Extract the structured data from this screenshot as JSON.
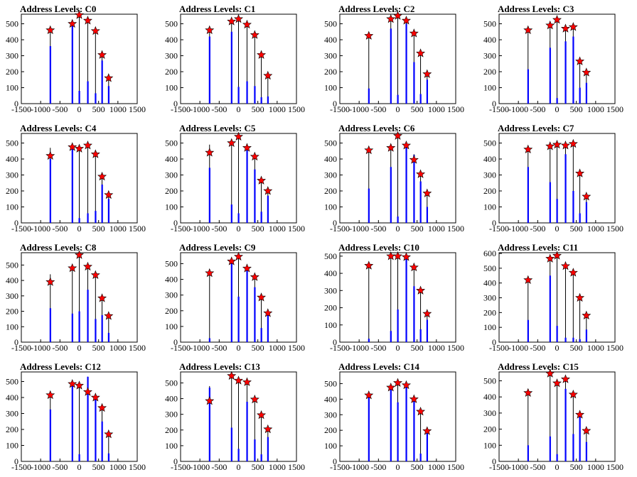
{
  "figure": {
    "background": "#ffffff",
    "bar_color": "#0000ff",
    "outline_color": "#000000",
    "star_fill": "#ff0000",
    "star_stroke": "#000000"
  },
  "chart_data": [
    {
      "type": "bar",
      "title": "Address Levels: C0",
      "xlim": [
        -1500,
        1500
      ],
      "xticks": [
        -1500,
        -1000,
        -500,
        0,
        500,
        1000,
        1500
      ],
      "ylim": [
        0,
        560
      ],
      "yticks": [
        0,
        100,
        200,
        300,
        400,
        500
      ],
      "x": [
        -750,
        -180,
        0,
        220,
        420,
        590,
        760
      ],
      "peaks": [
        460,
        500,
        560,
        520,
        455,
        305,
        160
      ],
      "bars": [
        360,
        490,
        80,
        140,
        65,
        270,
        110
      ],
      "markers": [
        460,
        500,
        555,
        520,
        455,
        305,
        160
      ]
    },
    {
      "type": "bar",
      "title": "Address Levels: C1",
      "xlim": [
        -1500,
        1500
      ],
      "xticks": [
        -1500,
        -1000,
        -500,
        0,
        500,
        1000,
        1500
      ],
      "ylim": [
        0,
        560
      ],
      "yticks": [
        0,
        100,
        200,
        300,
        400,
        500
      ],
      "x": [
        -750,
        -180,
        0,
        220,
        420,
        590,
        760
      ],
      "peaks": [
        460,
        520,
        530,
        500,
        430,
        310,
        175
      ],
      "bars": [
        420,
        450,
        105,
        140,
        110,
        40,
        45
      ],
      "markers": [
        460,
        515,
        530,
        495,
        430,
        305,
        175
      ]
    },
    {
      "type": "bar",
      "title": "Address Levels: C2",
      "xlim": [
        -1500,
        1500
      ],
      "xticks": [
        -1500,
        -1000,
        -500,
        0,
        500,
        1000,
        1500
      ],
      "ylim": [
        0,
        560
      ],
      "yticks": [
        0,
        100,
        200,
        300,
        400,
        500
      ],
      "x": [
        -750,
        -180,
        0,
        220,
        420,
        590,
        760
      ],
      "peaks": [
        430,
        530,
        550,
        525,
        440,
        315,
        185
      ],
      "bars": [
        95,
        470,
        55,
        500,
        260,
        60,
        150
      ],
      "markers": [
        425,
        530,
        550,
        520,
        440,
        315,
        185
      ]
    },
    {
      "type": "bar",
      "title": "Address Levels: C3",
      "xlim": [
        -1500,
        1500
      ],
      "xticks": [
        -1500,
        -1000,
        -500,
        0,
        500,
        1000,
        1500
      ],
      "ylim": [
        0,
        560
      ],
      "yticks": [
        0,
        100,
        200,
        300,
        400,
        500
      ],
      "x": [
        -750,
        -180,
        0,
        220,
        420,
        590,
        760
      ],
      "peaks": [
        460,
        495,
        525,
        490,
        480,
        290,
        200
      ],
      "bars": [
        215,
        350,
        35,
        390,
        420,
        100,
        130
      ],
      "markers": [
        460,
        490,
        525,
        470,
        480,
        265,
        195
      ]
    },
    {
      "type": "bar",
      "title": "Address Levels: C4",
      "xlim": [
        -1500,
        1500
      ],
      "xticks": [
        -1500,
        -1000,
        -500,
        0,
        500,
        1000,
        1500
      ],
      "ylim": [
        0,
        560
      ],
      "yticks": [
        0,
        100,
        200,
        300,
        400,
        500
      ],
      "x": [
        -750,
        -180,
        0,
        220,
        420,
        590,
        760
      ],
      "peaks": [
        470,
        480,
        480,
        490,
        440,
        300,
        180
      ],
      "bars": [
        400,
        480,
        30,
        60,
        75,
        240,
        150
      ],
      "markers": [
        420,
        475,
        465,
        485,
        430,
        290,
        175
      ]
    },
    {
      "type": "bar",
      "title": "Address Levels: C5",
      "xlim": [
        -1500,
        1500
      ],
      "xticks": [
        -1500,
        -1000,
        -500,
        0,
        500,
        1000,
        1500
      ],
      "ylim": [
        0,
        560
      ],
      "yticks": [
        0,
        100,
        200,
        300,
        400,
        500
      ],
      "x": [
        -750,
        -180,
        0,
        220,
        420,
        590,
        760
      ],
      "peaks": [
        490,
        500,
        540,
        470,
        440,
        270,
        205
      ],
      "bars": [
        345,
        115,
        60,
        455,
        335,
        70,
        170
      ],
      "markers": [
        440,
        500,
        540,
        470,
        415,
        265,
        200
      ]
    },
    {
      "type": "bar",
      "title": "Address Levels: C6",
      "xlim": [
        -1500,
        1500
      ],
      "xticks": [
        -1500,
        -1000,
        -500,
        0,
        500,
        1000,
        1500
      ],
      "ylim": [
        0,
        560
      ],
      "yticks": [
        0,
        100,
        200,
        300,
        400,
        500
      ],
      "x": [
        -750,
        -180,
        0,
        220,
        420,
        590,
        760
      ],
      "peaks": [
        455,
        475,
        545,
        490,
        430,
        310,
        190
      ],
      "bars": [
        215,
        350,
        40,
        470,
        425,
        260,
        100
      ],
      "markers": [
        455,
        470,
        545,
        485,
        395,
        305,
        185
      ]
    },
    {
      "type": "bar",
      "title": "Address Levels: C7",
      "xlim": [
        -1500,
        1500
      ],
      "xticks": [
        -1500,
        -1000,
        -500,
        0,
        500,
        1000,
        1500
      ],
      "ylim": [
        0,
        560
      ],
      "yticks": [
        0,
        100,
        200,
        300,
        400,
        500
      ],
      "x": [
        -750,
        -180,
        0,
        220,
        420,
        590,
        760
      ],
      "peaks": [
        465,
        485,
        490,
        495,
        495,
        320,
        175
      ],
      "bars": [
        350,
        255,
        150,
        430,
        200,
        60,
        130
      ],
      "markers": [
        460,
        480,
        490,
        485,
        495,
        310,
        165
      ]
    },
    {
      "type": "bar",
      "title": "Address Levels: C8",
      "xlim": [
        -1500,
        1500
      ],
      "xticks": [
        -1500,
        -1000,
        -500,
        0,
        500,
        1000,
        1500
      ],
      "ylim": [
        0,
        580
      ],
      "yticks": [
        0,
        100,
        200,
        300,
        400,
        500
      ],
      "x": [
        -750,
        -180,
        0,
        220,
        420,
        590,
        760
      ],
      "peaks": [
        440,
        490,
        575,
        500,
        440,
        290,
        175
      ],
      "bars": [
        220,
        185,
        200,
        340,
        150,
        175,
        60
      ],
      "markers": [
        390,
        480,
        565,
        490,
        435,
        285,
        170
      ]
    },
    {
      "type": "bar",
      "title": "Address Levels: C9",
      "xlim": [
        -1500,
        1500
      ],
      "xticks": [
        -1500,
        -1000,
        -500,
        0,
        500,
        1000,
        1500
      ],
      "ylim": [
        0,
        570
      ],
      "yticks": [
        0,
        100,
        200,
        300,
        400,
        500
      ],
      "x": [
        -750,
        -180,
        0,
        220,
        420,
        590,
        760
      ],
      "peaks": [
        450,
        520,
        555,
        480,
        435,
        290,
        190
      ],
      "bars": [
        25,
        500,
        290,
        460,
        350,
        90,
        180
      ],
      "markers": [
        440,
        515,
        545,
        470,
        415,
        285,
        185
      ]
    },
    {
      "type": "bar",
      "title": "Address Levels: C10",
      "xlim": [
        -1500,
        1500
      ],
      "xticks": [
        -1500,
        -1000,
        -500,
        0,
        500,
        1000,
        1500
      ],
      "ylim": [
        0,
        520
      ],
      "yticks": [
        0,
        100,
        200,
        300,
        400,
        500
      ],
      "x": [
        -750,
        -180,
        0,
        220,
        420,
        590,
        760
      ],
      "peaks": [
        450,
        505,
        505,
        500,
        440,
        310,
        170
      ],
      "bars": [
        20,
        65,
        190,
        490,
        325,
        75,
        130
      ],
      "markers": [
        445,
        500,
        500,
        495,
        435,
        300,
        165
      ]
    },
    {
      "type": "bar",
      "title": "Address Levels: C11",
      "xlim": [
        -1500,
        1500
      ],
      "xticks": [
        -1500,
        -1000,
        -500,
        0,
        500,
        1000,
        1500
      ],
      "ylim": [
        0,
        605
      ],
      "yticks": [
        0,
        100,
        200,
        300,
        400,
        500,
        600
      ],
      "x": [
        -750,
        -180,
        0,
        220,
        420,
        590,
        760
      ],
      "peaks": [
        430,
        580,
        590,
        520,
        480,
        300,
        185
      ],
      "bars": [
        150,
        450,
        110,
        30,
        30,
        20,
        85
      ],
      "markers": [
        420,
        565,
        585,
        515,
        470,
        300,
        180
      ]
    },
    {
      "type": "bar",
      "title": "Address Levels: C12",
      "xlim": [
        -1500,
        1500
      ],
      "xticks": [
        -1500,
        -1000,
        -500,
        0,
        500,
        1000,
        1500
      ],
      "ylim": [
        0,
        560
      ],
      "yticks": [
        0,
        100,
        200,
        300,
        400,
        500
      ],
      "x": [
        -750,
        -180,
        0,
        220,
        420,
        590,
        760
      ],
      "peaks": [
        430,
        490,
        480,
        530,
        420,
        340,
        175
      ],
      "bars": [
        325,
        475,
        45,
        530,
        415,
        250,
        50
      ],
      "markers": [
        415,
        485,
        475,
        435,
        400,
        335,
        170
      ]
    },
    {
      "type": "bar",
      "title": "Address Levels: C13",
      "xlim": [
        -1500,
        1500
      ],
      "xticks": [
        -1500,
        -1000,
        -500,
        0,
        500,
        1000,
        1500
      ],
      "ylim": [
        0,
        570
      ],
      "yticks": [
        0,
        100,
        200,
        300,
        400,
        500
      ],
      "x": [
        -750,
        -180,
        0,
        220,
        420,
        590,
        760
      ],
      "peaks": [
        480,
        545,
        520,
        510,
        400,
        300,
        205
      ],
      "bars": [
        470,
        215,
        80,
        380,
        140,
        45,
        155
      ],
      "markers": [
        385,
        545,
        515,
        505,
        395,
        295,
        205
      ]
    },
    {
      "type": "bar",
      "title": "Address Levels: C14",
      "xlim": [
        -1500,
        1500
      ],
      "xticks": [
        -1500,
        -1000,
        -500,
        0,
        500,
        1000,
        1500
      ],
      "ylim": [
        0,
        575
      ],
      "yticks": [
        0,
        100,
        200,
        300,
        400,
        500
      ],
      "x": [
        -750,
        -180,
        0,
        220,
        420,
        590,
        760
      ],
      "peaks": [
        430,
        490,
        515,
        505,
        410,
        330,
        200
      ],
      "bars": [
        430,
        470,
        380,
        490,
        400,
        50,
        180
      ],
      "markers": [
        425,
        475,
        505,
        490,
        400,
        320,
        195
      ]
    },
    {
      "type": "bar",
      "title": "Address Levels: C15",
      "xlim": [
        -1500,
        1500
      ],
      "xticks": [
        -1500,
        -1000,
        -500,
        0,
        500,
        1000,
        1500
      ],
      "ylim": [
        0,
        555
      ],
      "yticks": [
        0,
        100,
        200,
        300,
        400,
        500
      ],
      "x": [
        -750,
        -180,
        0,
        220,
        420,
        590,
        760
      ],
      "peaks": [
        440,
        545,
        490,
        510,
        420,
        300,
        195
      ],
      "bars": [
        100,
        155,
        45,
        450,
        170,
        290,
        120
      ],
      "markers": [
        425,
        545,
        485,
        510,
        415,
        290,
        190
      ]
    }
  ]
}
